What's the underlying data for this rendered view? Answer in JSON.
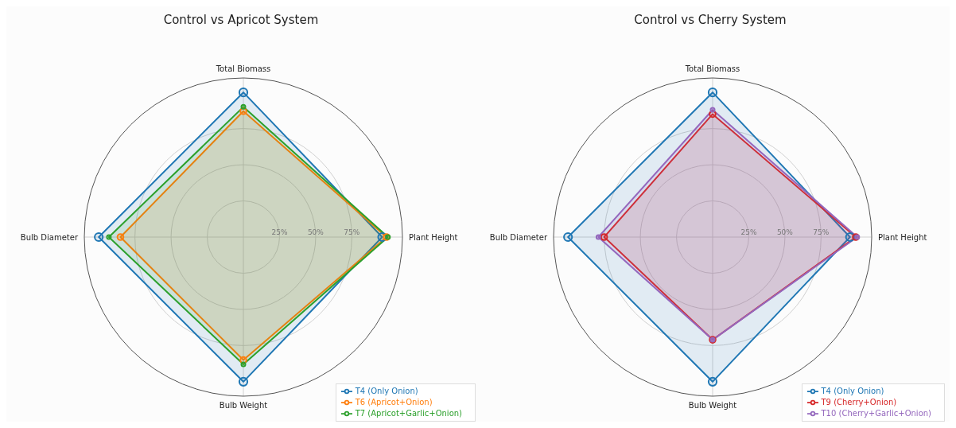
{
  "chart_data": [
    {
      "type": "radar",
      "title": "Control vs Apricot System",
      "categories": [
        "Total Biomass",
        "Plant Height",
        "Bulb Weight",
        "Bulb Diameter"
      ],
      "series": [
        {
          "name": "T4 (Only Onion)",
          "color": "#1f77b4",
          "values": [
            100,
            96,
            100,
            100
          ]
        },
        {
          "name": "T6 (Apricot+Onion)",
          "color": "#ff7f0e",
          "values": [
            87,
            99,
            85,
            85
          ]
        },
        {
          "name": "T7 (Apricot+Garlic+Onion)",
          "color": "#2ca02c",
          "values": [
            90,
            100,
            88,
            93
          ]
        }
      ],
      "ylim": [
        0,
        110
      ],
      "yticks": [
        {
          "value": 25,
          "label": "25%"
        },
        {
          "value": 50,
          "label": "50%"
        },
        {
          "value": 75,
          "label": "75%"
        }
      ],
      "grid": true,
      "legend": "bottom right",
      "marker": "circle"
    },
    {
      "type": "radar",
      "title": "Control vs Cherry System",
      "categories": [
        "Total Biomass",
        "Plant Height",
        "Bulb Weight",
        "Bulb Diameter"
      ],
      "series": [
        {
          "name": "T4 (Only Onion)",
          "color": "#1f77b4",
          "values": [
            100,
            95,
            100,
            100
          ]
        },
        {
          "name": "T9 (Cherry+Onion)",
          "color": "#d62728",
          "values": [
            85,
            99,
            71,
            75
          ]
        },
        {
          "name": "T10 (Cherry+Garlic+Onion)",
          "color": "#9467bd",
          "values": [
            88,
            100,
            71,
            79
          ]
        }
      ],
      "ylim": [
        0,
        110
      ],
      "yticks": [
        {
          "value": 25,
          "label": "25%"
        },
        {
          "value": 50,
          "label": "50%"
        },
        {
          "value": 75,
          "label": "75%"
        }
      ],
      "grid": true,
      "legend": "bottom right",
      "marker": "circle"
    }
  ]
}
